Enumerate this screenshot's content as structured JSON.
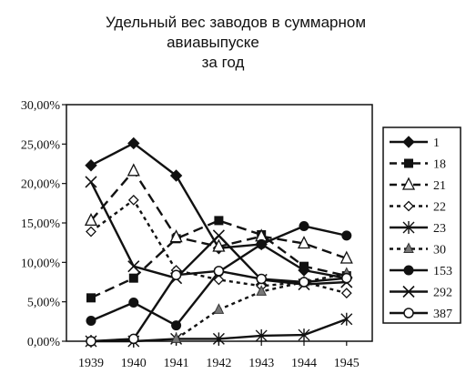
{
  "chart_data": {
    "type": "line",
    "title_lines": [
      "Удельный вес заводов в суммарном",
      "авиавыпуске",
      "за год"
    ],
    "xlabel": "",
    "ylabel": "",
    "categories": [
      "1939",
      "1940",
      "1941",
      "1942",
      "1943",
      "1944",
      "1945"
    ],
    "ylim": [
      0,
      30
    ],
    "yticks": [
      "0,00%",
      "5,00%",
      "10,00%",
      "15,00%",
      "20,00%",
      "25,00%",
      "30,00%"
    ],
    "legend_position": "right",
    "grid": false,
    "series": [
      {
        "name": "1",
        "style": "solid",
        "marker": "diamond-filled",
        "values": [
          22.3,
          25.1,
          21.0,
          11.8,
          12.3,
          9.0,
          8.0
        ]
      },
      {
        "name": "18",
        "style": "dashed",
        "marker": "square-filled",
        "values": [
          5.5,
          8.0,
          13.0,
          15.3,
          13.5,
          9.5,
          8.3
        ]
      },
      {
        "name": "21",
        "style": "dashed",
        "marker": "triangle-open",
        "values": [
          15.3,
          21.6,
          13.2,
          12.0,
          13.3,
          12.4,
          10.5
        ]
      },
      {
        "name": "22",
        "style": "dotted",
        "marker": "diamond-open",
        "values": [
          13.9,
          17.9,
          9.0,
          7.8,
          7.0,
          7.5,
          6.1
        ]
      },
      {
        "name": "23",
        "style": "solid",
        "marker": "asterisk",
        "values": [
          0.0,
          0.0,
          0.3,
          0.3,
          0.7,
          0.8,
          2.8
        ]
      },
      {
        "name": "30",
        "style": "dotted",
        "marker": "triangle-filled",
        "values": [
          null,
          null,
          0.3,
          4.0,
          6.3,
          7.5,
          8.6
        ]
      },
      {
        "name": "153",
        "style": "solid",
        "marker": "circle-filled",
        "values": [
          2.6,
          4.9,
          2.0,
          8.8,
          12.3,
          14.6,
          13.4
        ]
      },
      {
        "name": "292",
        "style": "solid",
        "marker": "x",
        "values": [
          20.2,
          9.5,
          8.0,
          13.4,
          7.8,
          7.2,
          7.5
        ]
      },
      {
        "name": "387",
        "style": "solid",
        "marker": "circle-open",
        "values": [
          0.0,
          0.3,
          8.4,
          8.9,
          7.9,
          7.5,
          8.0
        ]
      }
    ]
  }
}
